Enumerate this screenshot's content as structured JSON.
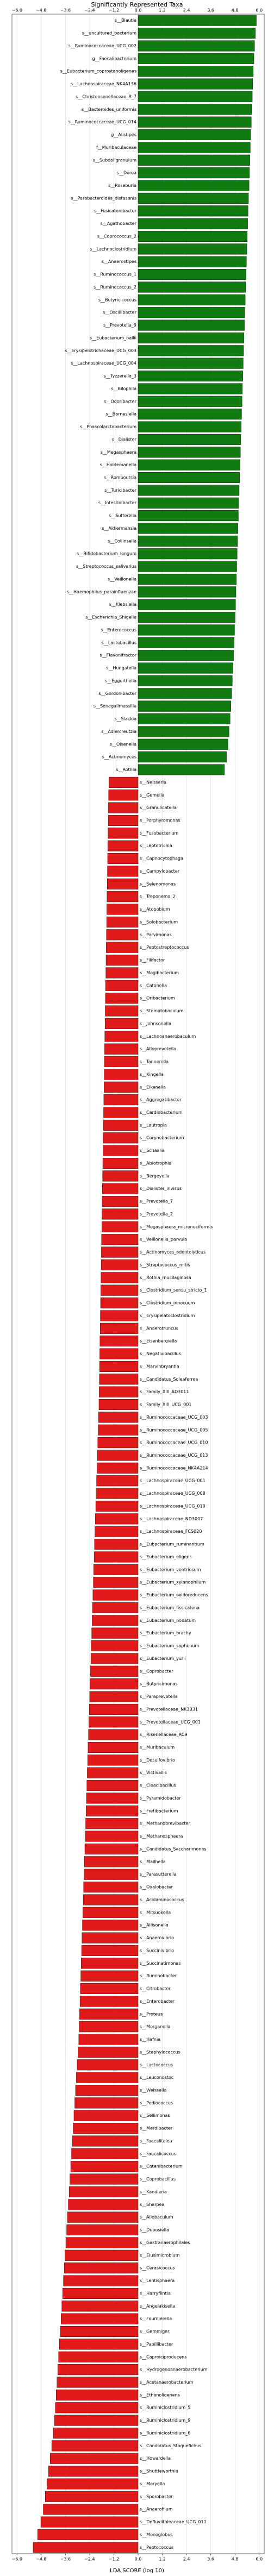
{
  "chart_data": {
    "type": "bar",
    "orientation": "horizontal",
    "title": "Significantly Represented Taxa",
    "xlabel": "LDA SCORE (log 10)",
    "categories": [
      "s__Blautia",
      "s__uncultured_bacterium",
      "s__Ruminococcaceae_UCG_002",
      "g__Faecalibacterium",
      "s__Eubacterium_coprostanoligenes",
      "s__Lachnospiraceae_NK4A136",
      "s__Christensenellaceae_R_7",
      "s__Bacteroides_uniformis",
      "s__Ruminococcaceae_UCG_014",
      "g__Alistipes",
      "f__Muribaculaceae",
      "s__Subdoligranulum",
      "s__Dorea",
      "s__Roseburia",
      "s__Parabacteroides_distasonis",
      "s__Fusicatenibacter",
      "s__Agathobacter",
      "s__Coprococcus_2",
      "s__Lachnoclostridium",
      "s__Anaerostipes",
      "s__Ruminococcus_1",
      "s__Ruminococcus_2",
      "s__Butyricicoccus",
      "s__Oscillibacter",
      "s__Prevotella_9",
      "s__Eubacterium_hallii",
      "s__Erysipelotrichaceae_UCG_003",
      "s__Lachnospiraceae_UCG_004",
      "s__Tyzzerella_3",
      "s__Bilophila",
      "s__Odoribacter",
      "s__Barnesiella",
      "s__Phascolarctobacterium",
      "s__Dialister",
      "s__Megasphaera",
      "s__Holdemanella",
      "s__Romboutsia",
      "s__Turicibacter",
      "s__Intestinibacter",
      "s__Sutterella",
      "s__Akkermansia",
      "s__Collinsella",
      "s__Bifidobacterium_longum",
      "s__Streptococcus_salivarius",
      "s__Veillonella",
      "s__Haemophilus_parainfluenzae",
      "s__Klebsiella",
      "s__Escherichia_Shigella",
      "s__Enterococcus",
      "s__Lactobacillus",
      "s__Flavonifractor",
      "s__Hungatella",
      "s__Eggerthella",
      "s__Gordonibacter",
      "s__Senegalimassilia",
      "s__Slackia",
      "s__Adlercreutzia",
      "s__Olsenella",
      "s__Actinomyces",
      "s__Rothia",
      "s__Neisseria",
      "s__Gemella",
      "s__Granulicatella",
      "s__Porphyromonas",
      "s__Fusobacterium",
      "s__Leptotrichia",
      "s__Capnocytophaga",
      "s__Campylobacter",
      "s__Selenomonas",
      "s__Treponema_2",
      "s__Atopobium",
      "s__Solobacterium",
      "s__Parvimonas",
      "s__Peptostreptococcus",
      "s__Filifactor",
      "s__Mogibacterium",
      "s__Catonella",
      "s__Oribacterium",
      "s__Stomatobaculum",
      "s__Johnsonella",
      "s__Lachnoanaerobaculum",
      "s__Alloprevotella",
      "s__Tannerella",
      "s__Kingella",
      "s__Eikenella",
      "s__Aggregatibacter",
      "s__Cardiobacterium",
      "s__Lautropia",
      "s__Corynebacterium",
      "s__Schaalia",
      "s__Abiotrophia",
      "s__Bergeyella",
      "s__Dialister_invisus",
      "s__Prevotella_7",
      "s__Prevotella_2",
      "s__Megasphaera_micronuciformis",
      "s__Veillonella_parvula",
      "s__Actinomyces_odontolyticus",
      "s__Streptococcus_mitis",
      "s__Rothia_mucilaginosa",
      "s__Clostridium_sensu_stricto_1",
      "s__Clostridium_innocuum",
      "s__Erysipelatoclostridium",
      "s__Anaerotruncus",
      "s__Eisenbergiella",
      "s__Negativibacillus",
      "s__Marvinbryantia",
      "s__Candidatus_Soleaferrea",
      "s__Family_XIII_AD3011",
      "s__Family_XIII_UCG_001",
      "s__Ruminococcaceae_UCG_003",
      "s__Ruminococcaceae_UCG_005",
      "s__Ruminococcaceae_UCG_010",
      "s__Ruminococcaceae_UCG_013",
      "s__Ruminococcaceae_NK4A214",
      "s__Lachnospiraceae_UCG_001",
      "s__Lachnospiraceae_UCG_008",
      "s__Lachnospiraceae_UCG_010",
      "s__Lachnospiraceae_ND3007",
      "s__Lachnospiraceae_FCS020",
      "s__Eubacterium_ruminantium",
      "s__Eubacterium_eligens",
      "s__Eubacterium_ventriosum",
      "s__Eubacterium_xylanophilum",
      "s__Eubacterium_oxidoreducens",
      "s__Eubacterium_fissicatena",
      "s__Eubacterium_nodatum",
      "s__Eubacterium_brachy",
      "s__Eubacterium_saphenum",
      "s__Eubacterium_yurii",
      "s__Coprobacter",
      "s__Butyricimonas",
      "s__Paraprevotella",
      "s__Prevotellaceae_NK3B31",
      "s__Prevotellaceae_UCG_001",
      "s__Rikenellaceae_RC9",
      "s__Muribaculum",
      "s__Desulfovibrio",
      "s__Victivallis",
      "s__Cloacibacillus",
      "s__Pyramidobacter",
      "s__Fretibacterium",
      "s__Methanobrevibacter",
      "s__Methanosphaera",
      "s__Candidatus_Saccharimonas",
      "s__Mailhella",
      "s__Parasutterella",
      "s__Oxalobacter",
      "s__Acidaminococcus",
      "s__Mitsuokella",
      "s__Allisonella",
      "s__Anaerovibrio",
      "s__Succinivibrio",
      "s__Succinatimonas",
      "s__Ruminobacter",
      "s__Citrobacter",
      "s__Enterobacter",
      "s__Proteus",
      "s__Morganella",
      "s__Hafnia",
      "s__Staphylococcus",
      "s__Lactococcus",
      "s__Leuconostoc",
      "s__Weissella",
      "s__Pediococcus",
      "s__Sellimonas",
      "s__Merdibacter",
      "s__Faecalitalea",
      "s__Faecalicoccus",
      "s__Catenibacterium",
      "s__Coprobacillus",
      "s__Kandleria",
      "s__Sharpea",
      "s__Allobaculum",
      "s__Dubosiella",
      "s__Gastranaerophilales",
      "s__Elusimicrobium",
      "s__Cerasicoccus",
      "s__Lentisphaera",
      "s__Harryflintia",
      "s__Angelakisella",
      "s__Fournierella",
      "s__Gemmiger",
      "s__Papillibacter",
      "s__Caproiciproducens",
      "s__Hydrogenoanaerobacterium",
      "s__Acetanaerobacterium",
      "s__Ethanoligenens",
      "s__Ruminiclostridium_5",
      "s__Ruminiclostridium_9",
      "s__Ruminiclostridium_6",
      "s__Candidatus_Stoquefichus",
      "s__Howardella",
      "s__Shuttleworthia",
      "s__Moryella",
      "s__Sporobacter",
      "s__Anaerofilum",
      "s__Defluviitaleaceae_UCG_011",
      "s__Monoglobus",
      "s__Peptococcus"
    ],
    "values": [
      5.86,
      5.81,
      5.77,
      5.74,
      5.71,
      5.68,
      5.66,
      5.63,
      5.61,
      5.58,
      5.56,
      5.54,
      5.52,
      5.5,
      5.47,
      5.45,
      5.43,
      5.41,
      5.39,
      5.37,
      5.35,
      5.33,
      5.31,
      5.29,
      5.27,
      5.25,
      5.23,
      5.21,
      5.19,
      5.17,
      5.15,
      5.13,
      5.11,
      5.09,
      5.07,
      5.05,
      5.03,
      5.01,
      4.99,
      4.97,
      4.95,
      4.93,
      4.91,
      4.89,
      4.87,
      4.85,
      4.83,
      4.81,
      4.78,
      4.76,
      4.73,
      4.7,
      4.67,
      4.64,
      4.6,
      4.56,
      4.51,
      4.45,
      4.38,
      4.28,
      -1.45,
      -1.46,
      -1.47,
      -1.48,
      -1.49,
      -1.5,
      -1.51,
      -1.52,
      -1.53,
      -1.54,
      -1.55,
      -1.56,
      -1.57,
      -1.58,
      -1.59,
      -1.6,
      -1.61,
      -1.62,
      -1.63,
      -1.64,
      -1.65,
      -1.66,
      -1.67,
      -1.68,
      -1.69,
      -1.7,
      -1.71,
      -1.72,
      -1.73,
      -1.74,
      -1.75,
      -1.76,
      -1.77,
      -1.78,
      -1.79,
      -1.8,
      -1.81,
      -1.82,
      -1.83,
      -1.84,
      -1.85,
      -1.86,
      -1.87,
      -1.88,
      -1.89,
      -1.9,
      -1.91,
      -1.92,
      -1.93,
      -1.94,
      -1.96,
      -1.98,
      -2.0,
      -2.02,
      -2.04,
      -2.06,
      -2.08,
      -2.1,
      -2.12,
      -2.14,
      -2.16,
      -2.18,
      -2.2,
      -2.22,
      -2.24,
      -2.26,
      -2.28,
      -2.3,
      -2.32,
      -2.34,
      -2.36,
      -2.38,
      -2.4,
      -2.42,
      -2.44,
      -2.46,
      -2.48,
      -2.5,
      -2.52,
      -2.54,
      -2.56,
      -2.58,
      -2.6,
      -2.62,
      -2.64,
      -2.66,
      -2.68,
      -2.7,
      -2.72,
      -2.74,
      -2.76,
      -2.78,
      -2.8,
      -2.82,
      -2.84,
      -2.86,
      -2.88,
      -2.9,
      -2.92,
      -2.94,
      -2.98,
      -3.02,
      -3.06,
      -3.1,
      -3.14,
      -3.18,
      -3.22,
      -3.26,
      -3.3,
      -3.34,
      -3.38,
      -3.42,
      -3.46,
      -3.5,
      -3.54,
      -3.58,
      -3.62,
      -3.66,
      -3.7,
      -3.74,
      -3.78,
      -3.82,
      -3.86,
      -3.9,
      -3.94,
      -3.98,
      -4.02,
      -4.06,
      -4.1,
      -4.14,
      -4.2,
      -4.28,
      -4.36,
      -4.44,
      -4.52,
      -4.6,
      -4.7,
      -4.82,
      -4.98,
      -5.2
    ],
    "positive_color": "#117a11",
    "negative_color": "#e01a1a",
    "xlim": [
      -6.25,
      6.25
    ],
    "xticks": [
      {
        "value": -6.0,
        "label": "−6.0"
      },
      {
        "value": -4.8,
        "label": "−4.8"
      },
      {
        "value": -3.6,
        "label": "−3.6"
      },
      {
        "value": -2.4,
        "label": "−2.4"
      },
      {
        "value": -1.2,
        "label": "−1.2"
      },
      {
        "value": 0,
        "label": "0.0"
      },
      {
        "value": 1.2,
        "label": "1.2"
      },
      {
        "value": 2.4,
        "label": "2.4"
      },
      {
        "value": 3.6,
        "label": "3.6"
      },
      {
        "value": 4.8,
        "label": "4.8"
      },
      {
        "value": 6.0,
        "label": "6.0"
      }
    ],
    "grid": true
  }
}
